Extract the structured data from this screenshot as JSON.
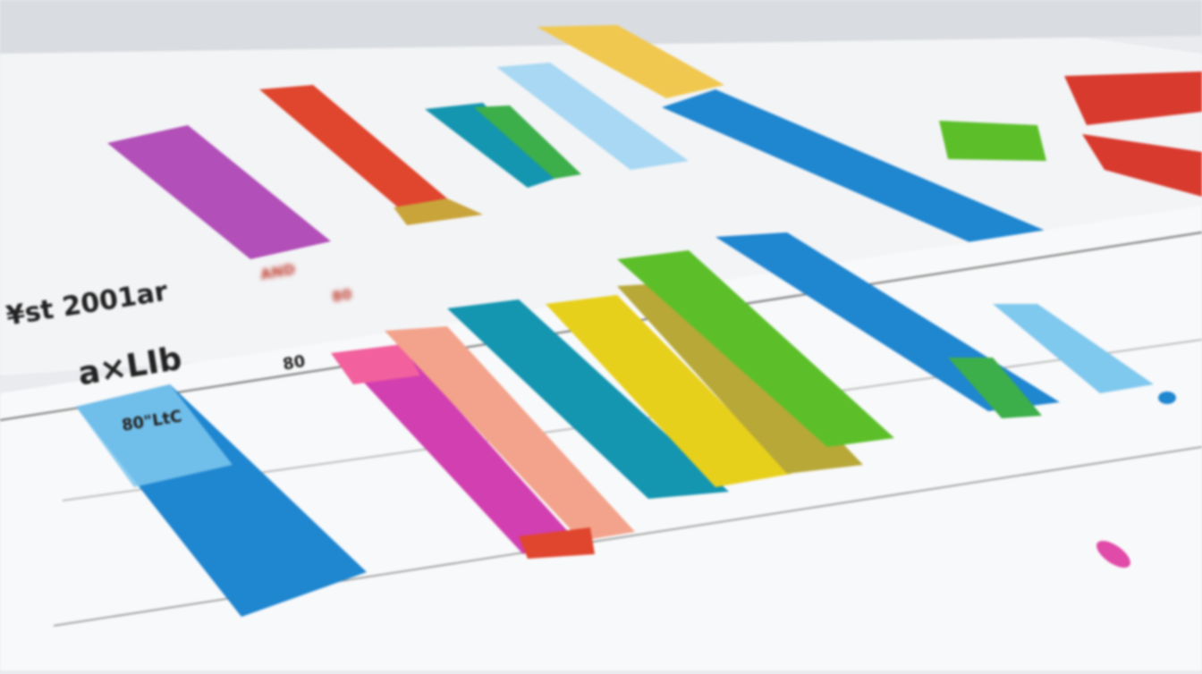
{
  "scene": {
    "description_free": true,
    "texts": {
      "heading_line1": "¥st 2001ar",
      "heading_line2": "a×LIb",
      "sub_label": "80\"LtC",
      "axis_small_1": "AND",
      "axis_small_2": "80",
      "axis_small_3": "80"
    },
    "colors": {
      "paper": "#f7f8f9",
      "background": "#e9ebee",
      "blue": "#1f86d0",
      "light_blue": "#7fc8ee",
      "magenta": "#d23fb0",
      "pink": "#f2609d",
      "salmon": "#f3a38c",
      "red": "#e0452e",
      "teal": "#1495b0",
      "yellow": "#e7d01c",
      "olive": "#b7a838",
      "green": "#5cbf2a",
      "purple": "#b24fb8",
      "gold": "#f0c850"
    }
  }
}
